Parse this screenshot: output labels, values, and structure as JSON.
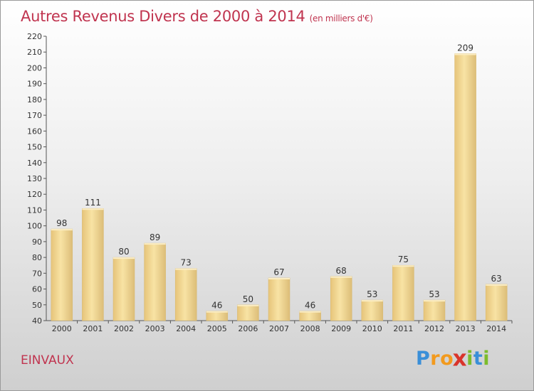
{
  "title": "Autres Revenus Divers de 2000 à 2014",
  "subtitle": "(en milliers d'€)",
  "location": "EINVAUX",
  "logo": {
    "text": "Proxiti",
    "letters": [
      {
        "ch": "P",
        "color": "#3a8fd8"
      },
      {
        "ch": "r",
        "color": "#f29a1e"
      },
      {
        "ch": "o",
        "color": "#f29a1e"
      },
      {
        "ch": "x",
        "color": "#d9342b"
      },
      {
        "ch": "i",
        "color": "#7cbc2c"
      },
      {
        "ch": "t",
        "color": "#3a8fd8"
      },
      {
        "ch": "i",
        "color": "#7cbc2c"
      }
    ]
  },
  "chart_data": {
    "type": "bar",
    "title": "Autres Revenus Divers de 2000 à 2014",
    "subtitle": "(en milliers d'€)",
    "categories": [
      "2000",
      "2001",
      "2002",
      "2003",
      "2004",
      "2005",
      "2006",
      "2007",
      "2008",
      "2009",
      "2010",
      "2011",
      "2012",
      "2013",
      "2014"
    ],
    "values": [
      98,
      111,
      80,
      89,
      73,
      46,
      50,
      67,
      46,
      68,
      53,
      75,
      53,
      209,
      63
    ],
    "ylim": [
      40,
      220
    ],
    "ytick_step": 10,
    "grid": false,
    "legend": "none",
    "colors": {
      "bar_light": "#f7df9c",
      "bar_mid": "#e8c77c",
      "bar_dark": "#c9a65c",
      "axis": "#555555",
      "text": "#333333"
    }
  }
}
